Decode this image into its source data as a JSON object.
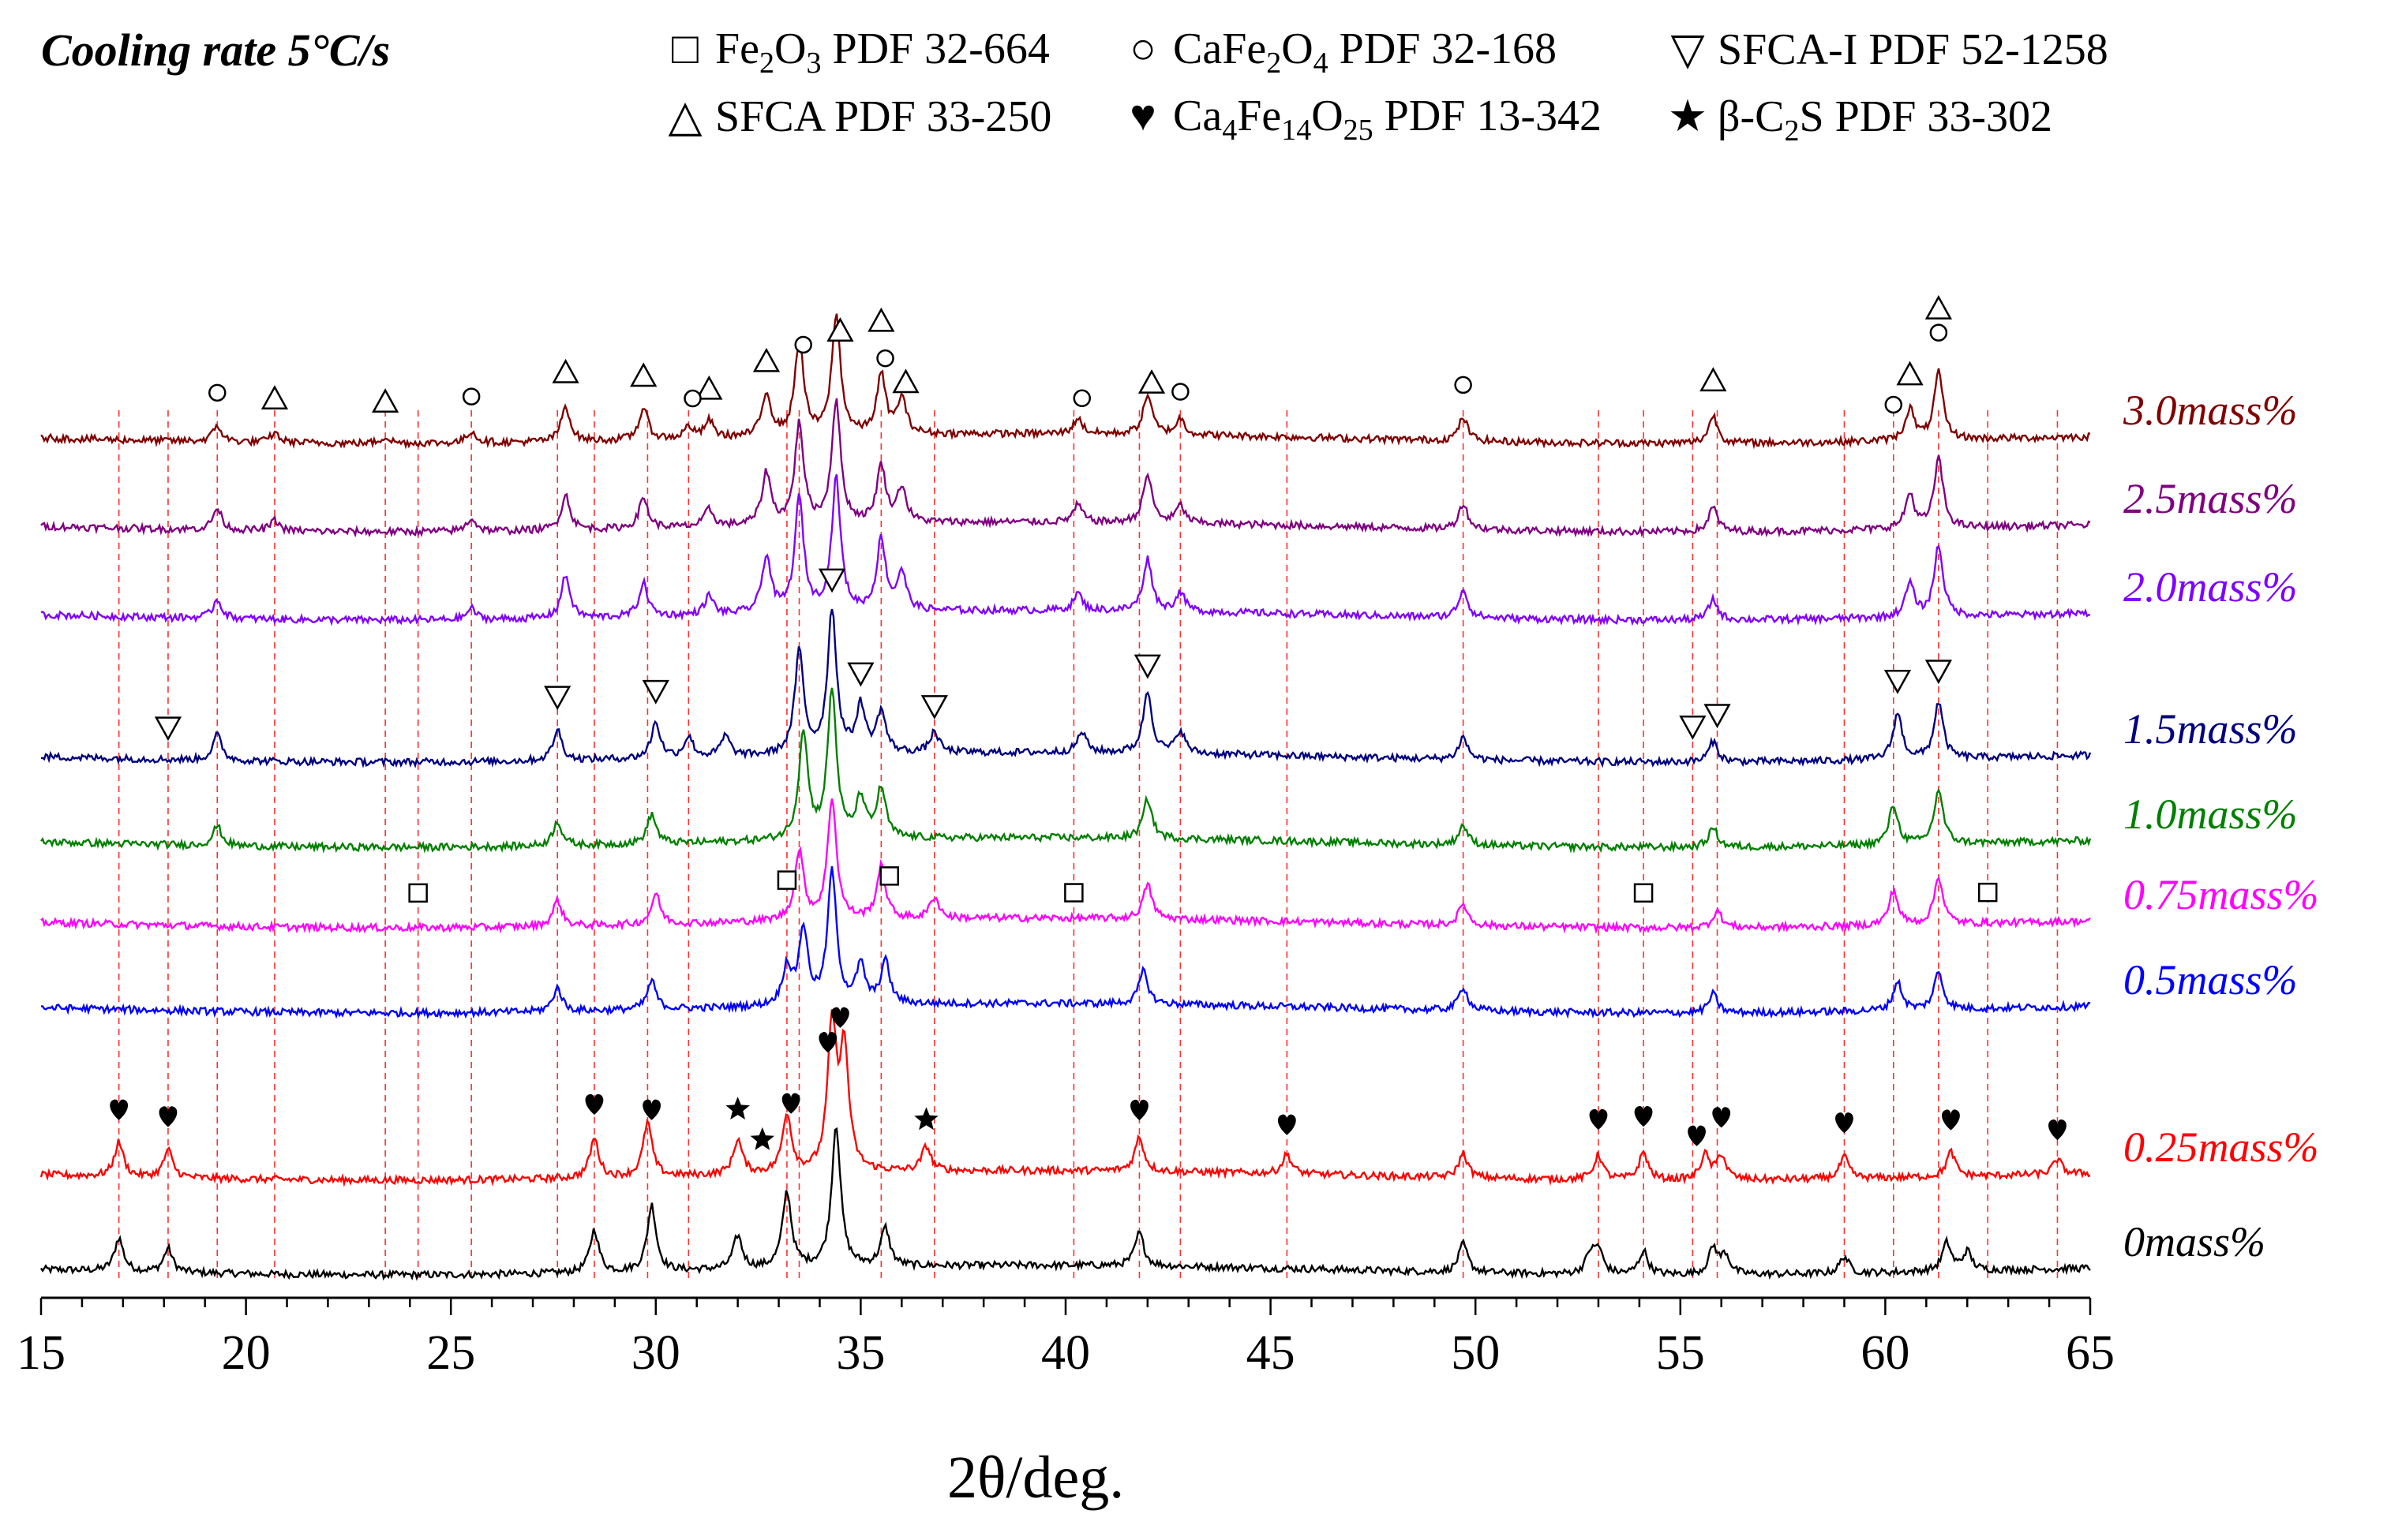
{
  "chart_data": {
    "type": "line",
    "title": "Cooling rate 5°C/s",
    "xlabel": "2θ/deg.",
    "ylabel": "",
    "xlim": [
      15,
      65
    ],
    "xticks": [
      15,
      20,
      25,
      30,
      35,
      40,
      45,
      50,
      55,
      60,
      65
    ],
    "legend": [
      {
        "symbol": "square",
        "phase": "Fe2O3",
        "ref": "PDF 32-664"
      },
      {
        "symbol": "circle",
        "phase": "CaFe2O4",
        "ref": "PDF 32-168"
      },
      {
        "symbol": "triangle-down",
        "phase": "SFCA-I",
        "ref": "PDF 52-1258"
      },
      {
        "symbol": "triangle-up",
        "phase": "SFCA",
        "ref": "PDF 33-250"
      },
      {
        "symbol": "heart",
        "phase": "Ca4Fe14O25",
        "ref": "PDF 13-342"
      },
      {
        "symbol": "star",
        "phase": "β-C2S",
        "ref": "PDF 33-302"
      }
    ],
    "series": [
      {
        "name": "0mass%",
        "color": "#000000",
        "peaks": [
          [
            16.9,
            35
          ],
          [
            18.1,
            25
          ],
          [
            28.5,
            45
          ],
          [
            29.9,
            70
          ],
          [
            32.0,
            35
          ],
          [
            33.2,
            80
          ],
          [
            34.4,
            150
          ],
          [
            35.6,
            40
          ],
          [
            41.8,
            35
          ],
          [
            49.7,
            30
          ],
          [
            52.8,
            20
          ],
          [
            53.0,
            25
          ],
          [
            54.1,
            25
          ],
          [
            55.8,
            28
          ],
          [
            56.1,
            20
          ],
          [
            59.0,
            18
          ],
          [
            61.5,
            30
          ],
          [
            62.0,
            20
          ]
        ]
      },
      {
        "name": "0.25mass%",
        "color": "#ff0000",
        "peaks": [
          [
            16.9,
            35
          ],
          [
            18.1,
            28
          ],
          [
            28.5,
            40
          ],
          [
            29.8,
            55
          ],
          [
            32.0,
            35
          ],
          [
            33.2,
            60
          ],
          [
            34.3,
            145
          ],
          [
            34.6,
            120
          ],
          [
            36.6,
            25
          ],
          [
            41.8,
            35
          ],
          [
            45.4,
            20
          ],
          [
            49.7,
            25
          ],
          [
            53.0,
            25
          ],
          [
            54.1,
            28
          ],
          [
            55.6,
            25
          ],
          [
            56.0,
            25
          ],
          [
            59.0,
            22
          ],
          [
            61.6,
            25
          ],
          [
            64.2,
            15
          ]
        ]
      },
      {
        "name": "0.5mass%",
        "color": "#0000ff",
        "peaks": [
          [
            27.6,
            25
          ],
          [
            29.9,
            30
          ],
          [
            33.2,
            40
          ],
          [
            33.6,
            80
          ],
          [
            34.3,
            140
          ],
          [
            35.0,
            40
          ],
          [
            35.6,
            45
          ],
          [
            41.9,
            35
          ],
          [
            49.7,
            25
          ],
          [
            55.8,
            20
          ],
          [
            60.3,
            30
          ],
          [
            61.3,
            40
          ]
        ]
      },
      {
        "name": "0.75mass%",
        "color": "#ff00ff",
        "peaks": [
          [
            27.6,
            30
          ],
          [
            30.0,
            35
          ],
          [
            33.5,
            80
          ],
          [
            34.3,
            140
          ],
          [
            35.5,
            60
          ],
          [
            36.8,
            25
          ],
          [
            42.0,
            40
          ],
          [
            49.7,
            25
          ],
          [
            55.9,
            20
          ],
          [
            60.2,
            40
          ],
          [
            61.3,
            55
          ]
        ]
      },
      {
        "name": "1.0mass%",
        "color": "#008000",
        "peaks": [
          [
            19.3,
            20
          ],
          [
            27.6,
            25
          ],
          [
            29.9,
            30
          ],
          [
            33.6,
            110
          ],
          [
            34.3,
            150
          ],
          [
            35.0,
            40
          ],
          [
            35.5,
            50
          ],
          [
            42.0,
            40
          ],
          [
            49.7,
            20
          ],
          [
            55.8,
            20
          ],
          [
            60.2,
            40
          ],
          [
            61.3,
            55
          ]
        ]
      },
      {
        "name": "1.5mass%",
        "color": "#000080",
        "peaks": [
          [
            19.3,
            25
          ],
          [
            27.6,
            30
          ],
          [
            30.0,
            35
          ],
          [
            30.8,
            20
          ],
          [
            31.7,
            20
          ],
          [
            33.5,
            100
          ],
          [
            34.3,
            140
          ],
          [
            35.0,
            45
          ],
          [
            35.5,
            40
          ],
          [
            36.8,
            20
          ],
          [
            40.4,
            20
          ],
          [
            42.0,
            60
          ],
          [
            42.8,
            22
          ],
          [
            49.7,
            22
          ],
          [
            55.8,
            20
          ],
          [
            60.3,
            45
          ],
          [
            61.3,
            55
          ]
        ]
      },
      {
        "name": "2.0mass%",
        "color": "#8000ff",
        "peaks": [
          [
            19.3,
            20
          ],
          [
            25.5,
            12
          ],
          [
            27.8,
            45
          ],
          [
            29.7,
            35
          ],
          [
            31.3,
            20
          ],
          [
            32.7,
            60
          ],
          [
            33.5,
            120
          ],
          [
            34.4,
            140
          ],
          [
            35.5,
            75
          ],
          [
            36.0,
            40
          ],
          [
            40.3,
            18
          ],
          [
            42.0,
            55
          ],
          [
            42.8,
            20
          ],
          [
            49.7,
            30
          ],
          [
            55.8,
            22
          ],
          [
            60.6,
            35
          ],
          [
            61.3,
            75
          ]
        ]
      },
      {
        "name": "2.5mass%",
        "color": "#800080",
        "peaks": [
          [
            19.3,
            25
          ],
          [
            20.7,
            12
          ],
          [
            25.5,
            15
          ],
          [
            27.8,
            40
          ],
          [
            29.7,
            35
          ],
          [
            31.3,
            20
          ],
          [
            32.7,
            60
          ],
          [
            33.5,
            115
          ],
          [
            34.4,
            140
          ],
          [
            35.5,
            65
          ],
          [
            36.0,
            40
          ],
          [
            40.3,
            20
          ],
          [
            42.0,
            55
          ],
          [
            42.8,
            20
          ],
          [
            49.7,
            30
          ],
          [
            55.8,
            28
          ],
          [
            60.6,
            40
          ],
          [
            61.3,
            80
          ]
        ]
      },
      {
        "name": "3.0mass%",
        "color": "#800000",
        "peaks": [
          [
            19.3,
            20
          ],
          [
            20.7,
            12
          ],
          [
            23.4,
            8
          ],
          [
            25.5,
            15
          ],
          [
            27.8,
            45
          ],
          [
            29.7,
            40
          ],
          [
            30.8,
            15
          ],
          [
            31.3,
            22
          ],
          [
            32.7,
            55
          ],
          [
            33.5,
            120
          ],
          [
            34.4,
            150
          ],
          [
            35.5,
            75
          ],
          [
            36.0,
            45
          ],
          [
            40.3,
            20
          ],
          [
            42.0,
            50
          ],
          [
            42.8,
            20
          ],
          [
            49.7,
            30
          ],
          [
            55.8,
            35
          ],
          [
            60.6,
            40
          ],
          [
            61.3,
            85
          ]
        ]
      }
    ],
    "markers": [
      {
        "symbol": "triangle-up",
        "series": "3.0mass%",
        "x": [
          20.7,
          23.4,
          27.8,
          29.7,
          31.3,
          32.7,
          34.5,
          35.5,
          36.1,
          42.1,
          55.8,
          60.6,
          61.3
        ]
      },
      {
        "symbol": "circle",
        "series": "3.0mass%",
        "x": [
          19.3,
          25.5,
          30.9,
          33.6,
          35.6,
          40.4,
          42.8,
          49.7,
          60.2,
          61.3
        ]
      },
      {
        "symbol": "triangle-down",
        "series": "1.5mass%",
        "x": [
          18.1,
          27.6,
          30.0,
          34.3,
          35.0,
          36.8,
          42.0,
          55.3,
          55.9,
          60.3,
          61.3
        ]
      },
      {
        "symbol": "square",
        "series": "0.75mass%",
        "x": [
          24.2,
          33.2,
          35.7,
          40.2,
          54.1,
          62.5
        ]
      },
      {
        "symbol": "heart",
        "series": "0.25mass%",
        "x": [
          16.9,
          18.1,
          28.5,
          29.9,
          33.3,
          34.2,
          34.5,
          41.8,
          45.4,
          53.0,
          54.1,
          55.4,
          56.0,
          59.0,
          61.6,
          64.2
        ]
      },
      {
        "symbol": "star",
        "series": "0.25mass%",
        "x": [
          32.0,
          32.6,
          36.6
        ]
      }
    ],
    "dashed_reference_lines": [
      16.9,
      18.1,
      19.3,
      20.7,
      23.4,
      24.2,
      25.5,
      27.6,
      28.5,
      29.8,
      30.8,
      33.2,
      33.5,
      35.5,
      36.8,
      40.2,
      41.8,
      42.8,
      45.4,
      49.7,
      53.0,
      54.1,
      55.3,
      55.9,
      59.0,
      60.2,
      61.3,
      62.5,
      64.2
    ]
  }
}
